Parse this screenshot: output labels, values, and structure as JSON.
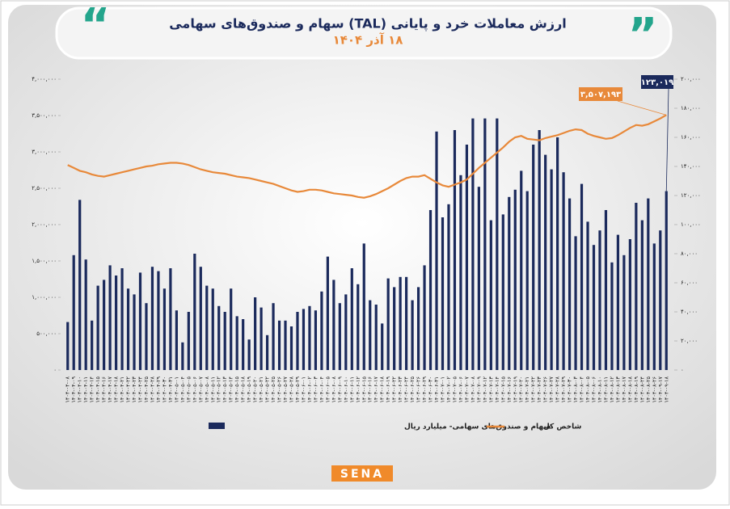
{
  "chart_data": {
    "type": "bar",
    "title": "ارزش معاملات خرد و پایانی (TAL) سهام و صندوق‌های سهامی",
    "subtitle": "۱۸ آذر ۱۴۰۴",
    "logo": "SENA",
    "categories": [
      "۱۴۰۴-۰۴-۰۸",
      "۱۴۰۴-۰۴-۰۹",
      "۱۴۰۴-۰۴-۱۰",
      "۱۴۰۴-۰۴-۱۱",
      "۱۴۰۴-۰۴-۱۴",
      "۱۴۰۴-۰۴-۱۵",
      "۱۴۰۴-۰۴-۱۶",
      "۱۴۰۴-۰۴-۱۷",
      "۱۴۰۴-۰۴-۱۸",
      "۱۴۰۴-۰۴-۲۱",
      "۱۴۰۴-۰۴-۲۲",
      "۱۴۰۴-۰۴-۲۳",
      "۱۴۰۴-۰۴-۲۴",
      "۱۴۰۴-۰۴-۲۵",
      "۱۴۰۴-۰۴-۲۸",
      "۱۴۰۴-۰۴-۲۹",
      "۱۴۰۴-۰۴-۳۰",
      "۱۴۰۴-۰۴-۳۱",
      "۱۴۰۴-۰۵-۰۱",
      "۱۴۰۴-۰۵-۰۴",
      "۱۴۰۴-۰۵-۰۵",
      "۱۴۰۴-۰۵-۰۶",
      "۱۴۰۴-۰۵-۰۷",
      "۱۴۰۴-۰۵-۰۸",
      "۱۴۰۴-۰۵-۱۱",
      "۱۴۰۴-۰۵-۱۲",
      "۱۴۰۴-۰۵-۱۳",
      "۱۴۰۴-۰۵-۱۴",
      "۱۴۰۴-۰۵-۱۵",
      "۱۴۰۴-۰۵-۱۸",
      "۱۴۰۴-۰۵-۱۹",
      "۱۴۰۴-۰۵-۲۰",
      "۱۴۰۴-۰۵-۲۱",
      "۱۴۰۴-۰۵-۲۲",
      "۱۴۰۴-۰۵-۲۵",
      "۱۴۰۴-۰۵-۲۶",
      "۱۴۰۴-۰۵-۲۷",
      "۱۴۰۴-۰۵-۲۸",
      "۱۴۰۴-۰۵-۲۹",
      "۱۴۰۴-۰۶-۰۱",
      "۱۴۰۴-۰۶-۰۲",
      "۱۴۰۴-۰۶-۰۳",
      "۱۴۰۴-۰۶-۰۴",
      "۱۴۰۴-۰۶-۰۵",
      "۱۴۰۴-۰۶-۰۸",
      "۱۴۰۴-۰۶-۰۹",
      "۱۴۰۴-۰۶-۱۰",
      "۱۴۰۴-۰۶-۱۱",
      "۱۴۰۴-۰۶-۱۲",
      "۱۴۰۴-۰۶-۱۵",
      "۱۴۰۴-۰۶-۱۶",
      "۱۴۰۴-۰۶-۱۷",
      "۱۴۰۴-۰۶-۱۸",
      "۱۴۰۴-۰۶-۱۹",
      "۱۴۰۴-۰۶-۲۲",
      "۱۴۰۴-۰۶-۲۳",
      "۱۴۰۴-۰۶-۲۴",
      "۱۴۰۴-۰۶-۲۵",
      "۱۴۰۴-۰۶-۲۶",
      "۱۴۰۴-۰۶-۲۹",
      "۱۴۰۴-۰۶-۳۰",
      "۱۴۰۴-۰۶-۳۱",
      "۱۴۰۴-۰۷-۰۱",
      "۱۴۰۴-۰۷-۰۲",
      "۱۴۰۴-۰۷-۰۵",
      "۱۴۰۴-۰۷-۰۶",
      "۱۴۰۴-۰۷-۰۷",
      "۱۴۰۴-۰۷-۰۸",
      "۱۴۰۴-۰۷-۰۹",
      "۱۴۰۴-۰۷-۱۲",
      "۱۴۰۴-۰۷-۱۳",
      "۱۴۰۴-۰۷-۱۴",
      "۱۴۰۴-۰۷-۱۵",
      "۱۴۰۴-۰۷-۱۶",
      "۱۴۰۴-۰۷-۱۹",
      "۱۴۰۴-۰۷-۲۰",
      "۱۴۰۴-۰۷-۲۱",
      "۱۴۰۴-۰۷-۲۲",
      "۱۴۰۴-۰۷-۲۳",
      "۱۴۰۴-۰۷-۲۶",
      "۱۴۰۴-۰۷-۲۷",
      "۱۴۰۴-۰۷-۲۸",
      "۱۴۰۴-۰۷-۲۹",
      "۱۴۰۴-۰۷-۳۰",
      "۱۴۰۴-۰۸-۰۳",
      "۱۴۰۴-۰۸-۰۴",
      "۱۴۰۴-۰۸-۰۵",
      "۱۴۰۴-۰۸-۰۶",
      "۱۴۰۴-۰۸-۱۰",
      "۱۴۰۴-۰۸-۱۱",
      "۱۴۰۴-۰۸-۱۲",
      "۱۴۰۴-۰۸-۱۳",
      "۱۴۰۴-۰۸-۱۷",
      "۱۴۰۴-۰۸-۱۸",
      "۱۴۰۴-۰۸-۱۹",
      "۱۴۰۴-۰۸-۲۴",
      "۱۴۰۴-۰۸-۲۵",
      "۱۴۰۴-۰۸-۲۶",
      "۱۴۰۴-۰۹-۱۷",
      "۱۴۰۴-۰۹-۱۸"
    ],
    "series": [
      {
        "name": "سهام و صندوق‌های سهامی- میلیارد ریال",
        "color": "#1b2a5c",
        "axis": "y2",
        "values": [
          33000,
          79000,
          117000,
          76000,
          34000,
          58000,
          62000,
          72000,
          65000,
          70000,
          56000,
          52000,
          67000,
          46000,
          71000,
          68000,
          56000,
          70000,
          41000,
          19000,
          40000,
          80000,
          71000,
          58000,
          56000,
          44000,
          40000,
          56000,
          37000,
          35000,
          21000,
          50000,
          43000,
          24000,
          46000,
          34000,
          34000,
          30000,
          40000,
          42000,
          44000,
          41000,
          54000,
          78000,
          62000,
          46000,
          52000,
          70000,
          59000,
          87000,
          48000,
          45000,
          32000,
          63000,
          57000,
          64000,
          64000,
          48000,
          57000,
          72000,
          110000,
          164000,
          105000,
          114000,
          165000,
          134000,
          155000,
          173000,
          126000,
          173000,
          103000,
          173000,
          107000,
          119000,
          124000,
          137000,
          123000,
          155000,
          165000,
          148000,
          138000,
          160000,
          136000,
          118000,
          92000,
          128000,
          102000,
          86000,
          96000,
          110000,
          74000,
          93000,
          79000,
          90000,
          115000,
          103000,
          118000,
          87000,
          96000,
          123019
        ],
        "value_labels": [
          null,
          null,
          null,
          null,
          null,
          null,
          null,
          null,
          null,
          null,
          null,
          null,
          null,
          null,
          null,
          null,
          null,
          null,
          null,
          null,
          null,
          null,
          null,
          null,
          null,
          null,
          null,
          null,
          null,
          null,
          null,
          null,
          null,
          null,
          null,
          null,
          null,
          null,
          null,
          null,
          null,
          null,
          null,
          null,
          null,
          null,
          null,
          null,
          null,
          null,
          null,
          null,
          null,
          null,
          null,
          null,
          null,
          null,
          null,
          null,
          null,
          null,
          null,
          null,
          null,
          null,
          null,
          null,
          null,
          null,
          null,
          null,
          null,
          null,
          null,
          null,
          null,
          null,
          null,
          null,
          null,
          null,
          null,
          null,
          null,
          null,
          null,
          null,
          null,
          null,
          null,
          null,
          null,
          null,
          null,
          null,
          null,
          null,
          null,
          "۱۲۳,۰۱۹"
        ]
      },
      {
        "name": "شاخص کل",
        "color": "#e8893a",
        "type": "line",
        "values": [
          2820000,
          2780000,
          2740000,
          2720000,
          2690000,
          2670000,
          2660000,
          2680000,
          2700000,
          2720000,
          2740000,
          2760000,
          2780000,
          2800000,
          2810000,
          2830000,
          2840000,
          2850000,
          2850000,
          2840000,
          2820000,
          2790000,
          2760000,
          2740000,
          2720000,
          2710000,
          2700000,
          2680000,
          2660000,
          2650000,
          2640000,
          2620000,
          2600000,
          2580000,
          2560000,
          2530000,
          2500000,
          2470000,
          2450000,
          2460000,
          2480000,
          2480000,
          2470000,
          2450000,
          2430000,
          2420000,
          2410000,
          2400000,
          2380000,
          2370000,
          2390000,
          2420000,
          2460000,
          2500000,
          2550000,
          2600000,
          2640000,
          2660000,
          2660000,
          2680000,
          2630000,
          2580000,
          2540000,
          2520000,
          2550000,
          2580000,
          2620000,
          2700000,
          2780000,
          2850000,
          2920000,
          2990000,
          3060000,
          3140000,
          3200000,
          3220000,
          3180000,
          3170000,
          3160000,
          3190000,
          3210000,
          3230000,
          3260000,
          3290000,
          3310000,
          3300000,
          3250000,
          3220000,
          3200000,
          3180000,
          3190000,
          3230000,
          3280000,
          3330000,
          3370000,
          3360000,
          3380000,
          3420000,
          3460000,
          3507193
        ],
        "value_labels": [
          null,
          null,
          null,
          null,
          null,
          null,
          null,
          null,
          null,
          null,
          null,
          null,
          null,
          null,
          null,
          null,
          null,
          null,
          null,
          null,
          null,
          null,
          null,
          null,
          null,
          null,
          null,
          null,
          null,
          null,
          null,
          null,
          null,
          null,
          null,
          null,
          null,
          null,
          null,
          null,
          null,
          null,
          null,
          null,
          null,
          null,
          null,
          null,
          null,
          null,
          null,
          null,
          null,
          null,
          null,
          null,
          null,
          null,
          null,
          null,
          null,
          null,
          null,
          null,
          null,
          null,
          null,
          null,
          null,
          null,
          null,
          null,
          null,
          null,
          null,
          null,
          null,
          null,
          null,
          null,
          null,
          null,
          null,
          null,
          null,
          null,
          null,
          null,
          null,
          null,
          null,
          null,
          null,
          null,
          null,
          null,
          null,
          null,
          null,
          "۳,۵۰۷,۱۹۳"
        ]
      }
    ],
    "ylim": [
      0,
      4000000
    ],
    "yticks": [
      {
        "value": 0,
        "label": "۰"
      },
      {
        "value": 500000,
        "label": "۵۰۰,۰۰۰"
      },
      {
        "value": 1000000,
        "label": "۱,۰۰۰,۰۰۰"
      },
      {
        "value": 1500000,
        "label": "۱,۵۰۰,۰۰۰"
      },
      {
        "value": 2000000,
        "label": "۲,۰۰۰,۰۰۰"
      },
      {
        "value": 2500000,
        "label": "۲,۵۰۰,۰۰۰"
      },
      {
        "value": 3000000,
        "label": "۳,۰۰۰,۰۰۰"
      },
      {
        "value": 3500000,
        "label": "۳,۵۰۰,۰۰۰"
      },
      {
        "value": 4000000,
        "label": "۴,۰۰۰,۰۰۰"
      }
    ],
    "y2lim": [
      0,
      200000
    ],
    "y2ticks": [
      {
        "value": 0,
        "label": "۰"
      },
      {
        "value": 20000,
        "label": "۲۰,۰۰۰"
      },
      {
        "value": 40000,
        "label": "۴۰,۰۰۰"
      },
      {
        "value": 60000,
        "label": "۶۰,۰۰۰"
      },
      {
        "value": 80000,
        "label": "۸۰,۰۰۰"
      },
      {
        "value": 100000,
        "label": "۱۰۰,۰۰۰"
      },
      {
        "value": 120000,
        "label": "۱۲۰,۰۰۰"
      },
      {
        "value": 140000,
        "label": "۱۴۰,۰۰۰"
      },
      {
        "value": 160000,
        "label": "۱۶۰,۰۰۰"
      },
      {
        "value": 180000,
        "label": "۱۸۰,۰۰۰"
      },
      {
        "value": 200000,
        "label": "۲۰۰,۰۰۰"
      }
    ],
    "grid": false,
    "legend": "bottom"
  }
}
